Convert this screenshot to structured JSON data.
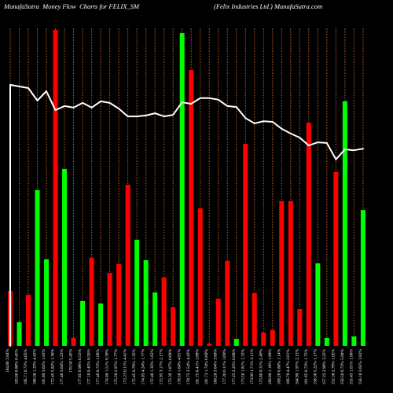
{
  "chart_data": {
    "type": "bar",
    "title": "MunafaSutra  Money Flow  Charts for FELIX_SM",
    "subtitle": "(Felix Industries Ltd.) MunafaSutra.com",
    "ylim": [
      0,
      100
    ],
    "grid": true,
    "legend": false,
    "background": "#000000",
    "grid_color": "#a0501e",
    "categories": [
      "184.60 3.84%",
      "183.00 0.88% 0.43%",
      "185.71 0.73% 4.65%",
      "186.30 1.33% 4.43%",
      "181.80 3.62% 1.83%",
      "172.45 5.82% 1.36%",
      "177.40 3.64% 1.23%",
      "176.50 5.45%",
      "177.85 0.96% 0.53%",
      "177.10 0.45% 8.50%",
      "177.40 0.73% 1.06%",
      "174.00 1.51% 0.39%",
      "175.20 2.97% 1.77%",
      "172.23 0.11% 4.41%",
      "172.45 0.79% 1.35%",
      "174.05 4.24% 1.77%",
      "172.40 1.35% 1.65%",
      "172.95 3.17% 2.17%",
      "172.30 1.67% 0.68%",
      "178.50 1.64% 4.91%",
      "178.75 3.54% 4.43%",
      "181.75 0.41% 3.89%",
      "181.73 1.74% 0.69%",
      "180.20 3.64% 3.89%",
      "177.20 0.11% 3.69%",
      "177.25 2.25% 0.88%",
      "173.50 1.81% 1.33%",
      "173.90 1.71% 3.11%",
      "173.80 0.31% 2.49%",
      "169.90 1.16% 1.99%",
      "169.20 0.88% 1.14%",
      "166.70 4.47% 2.01%",
      "164.90 1.97% 2.15%",
      "161.65 0.73% 1.75%",
      "158.30 5.22% 1.17%",
      "157.25 2.96% 3.25%",
      "152.30 2.79% 1.05%",
      "156.50 0.73% 5.88%",
      "155.45 1.01% 1.86%",
      "156.10 3.65% 3.83%"
    ],
    "series": [
      {
        "type": "bar",
        "values": [
          17.4,
          7.5,
          16.2,
          49.3,
          27.4,
          100,
          56.0,
          2.5,
          14.2,
          27.9,
          13.4,
          23.1,
          25.9,
          51.0,
          33.6,
          27.1,
          16.9,
          21.6,
          12.2,
          99.0,
          87.3,
          43.5,
          0.7,
          14.9,
          26.9,
          2.2,
          63.9,
          16.7,
          4.2,
          5.0,
          45.8,
          45.8,
          11.7,
          70.6,
          26.1,
          2.5,
          55.0,
          77.4,
          3.0,
          43.0
        ],
        "colors": [
          "#ff0000",
          "#00ff00",
          "#ff0000",
          "#00ff00",
          "#00ff00",
          "#ff0000",
          "#00ff00",
          "#ff0000",
          "#00ff00",
          "#ff0000",
          "#00ff00",
          "#ff0000",
          "#ff0000",
          "#ff0000",
          "#00ff00",
          "#00ff00",
          "#00ff00",
          "#ff0000",
          "#ff0000",
          "#00ff00",
          "#ff0000",
          "#ff0000",
          "#ff0000",
          "#ff0000",
          "#ff0000",
          "#00ff00",
          "#ff0000",
          "#ff0000",
          "#ff0000",
          "#ff0000",
          "#ff0000",
          "#ff0000",
          "#ff0000",
          "#ff0000",
          "#00ff00",
          "#00ff00",
          "#ff0000",
          "#00ff00",
          "#00ff00",
          "#00ff00"
        ]
      },
      {
        "type": "line",
        "values": [
          82.6,
          82.1,
          81.6,
          77.6,
          80.6,
          74.6,
          75.9,
          75.4,
          76.9,
          75.4,
          77.4,
          76.9,
          75.1,
          72.6,
          72.6,
          72.9,
          73.6,
          72.6,
          73.1,
          77.1,
          76.6,
          78.4,
          78.4,
          77.9,
          75.9,
          75.6,
          72.1,
          70.4,
          71.1,
          70.9,
          68.7,
          67.2,
          65.9,
          63.4,
          64.4,
          64.2,
          59.0,
          62.2,
          61.9,
          62.4
        ],
        "color": "#ffffff"
      }
    ]
  }
}
